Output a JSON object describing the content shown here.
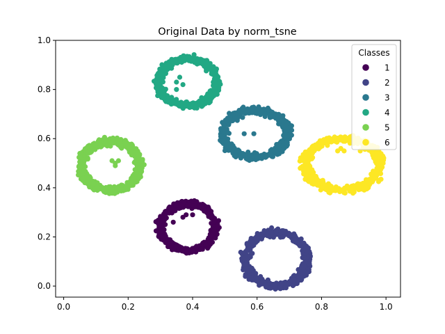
{
  "chart_data": {
    "type": "scatter",
    "title": "Original Data by norm_tsne",
    "xlabel": "",
    "ylabel": "",
    "xlim": [
      -0.025,
      1.045
    ],
    "ylim": [
      -0.045,
      1.0
    ],
    "xticks": [
      0.0,
      0.2,
      0.4,
      0.6,
      0.8,
      1.0
    ],
    "yticks": [
      0.0,
      0.2,
      0.4,
      0.6,
      0.8,
      1.0
    ],
    "grid": false,
    "legend": {
      "title": "Classes",
      "placement": "top-right"
    },
    "series": [
      {
        "name": "1",
        "color": "#440154",
        "center": [
          0.385,
          0.24
        ],
        "radius": [
          0.085,
          0.095
        ],
        "hole_points": [
          [
            0.37,
            0.28
          ],
          [
            0.38,
            0.29
          ],
          [
            0.4,
            0.29
          ],
          [
            0.34,
            0.26
          ]
        ]
      },
      {
        "name": "2",
        "color": "#414487",
        "center": [
          0.66,
          0.11
        ],
        "radius": [
          0.095,
          0.11
        ],
        "hole_points": [
          [
            0.64,
            0.2
          ],
          [
            0.66,
            0.21
          ],
          [
            0.68,
            0.2
          ]
        ]
      },
      {
        "name": "3",
        "color": "#2a788e",
        "center": [
          0.595,
          0.62
        ],
        "radius": [
          0.1,
          0.095
        ],
        "hole_points": [
          [
            0.56,
            0.62
          ],
          [
            0.59,
            0.62
          ]
        ]
      },
      {
        "name": "4",
        "color": "#22a884",
        "center": [
          0.385,
          0.83
        ],
        "radius": [
          0.09,
          0.095
        ],
        "hole_points": [
          [
            0.35,
            0.83
          ],
          [
            0.36,
            0.85
          ],
          [
            0.37,
            0.82
          ],
          [
            0.35,
            0.8
          ]
        ]
      },
      {
        "name": "5",
        "color": "#7ad151",
        "center": [
          0.145,
          0.49
        ],
        "radius": [
          0.09,
          0.1
        ],
        "hole_points": [
          [
            0.16,
            0.5
          ],
          [
            0.17,
            0.51
          ],
          [
            0.16,
            0.49
          ],
          [
            0.15,
            0.51
          ]
        ]
      },
      {
        "name": "6",
        "color": "#fde725",
        "center": [
          0.865,
          0.495
        ],
        "radius": [
          0.115,
          0.105
        ],
        "hole_points": [
          [
            0.85,
            0.55
          ],
          [
            0.86,
            0.56
          ],
          [
            0.87,
            0.55
          ],
          [
            0.92,
            0.55
          ]
        ]
      }
    ]
  }
}
